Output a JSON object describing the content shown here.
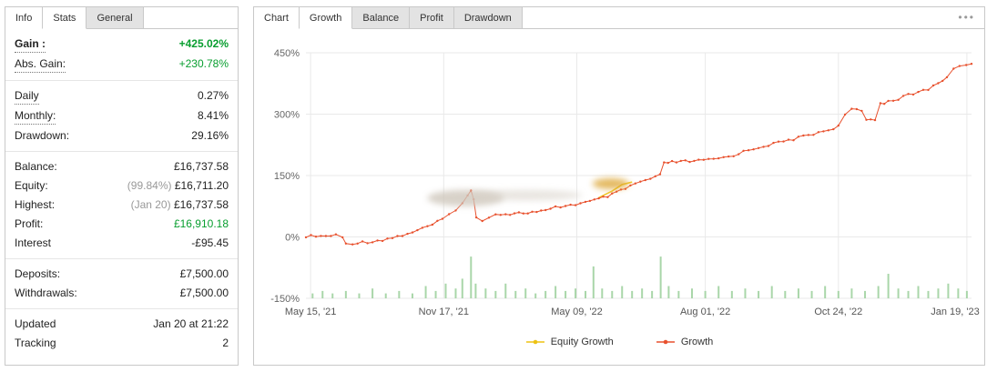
{
  "colors": {
    "positive": "#089e2f",
    "text": "#222222",
    "muted": "#999999",
    "growth_line": "#e8512e",
    "equity_line": "#edc213",
    "activity_bars": "#a9d6a9",
    "grid": "#e9e9e9",
    "border": "#c9c9c9",
    "tab_inactive": "#e3e3e3",
    "axis_label": "#666666"
  },
  "left_panel": {
    "tabs": [
      {
        "label": "Info",
        "highlighted": true
      },
      {
        "label": "Stats",
        "highlighted": true
      },
      {
        "label": "General",
        "highlighted": false
      }
    ],
    "groups": [
      [
        {
          "label": "Gain :",
          "value": "+425.02%",
          "value_color": "positive",
          "bold": true,
          "bold_value": true,
          "dotted": true
        },
        {
          "label": "Abs. Gain:",
          "value": "+230.78%",
          "value_color": "positive",
          "dotted": true
        }
      ],
      [
        {
          "label": "Daily",
          "value": "0.27%",
          "dotted": true
        },
        {
          "label": "Monthly:",
          "value": "8.41%",
          "dotted": true
        },
        {
          "label": "Drawdown:",
          "value": "29.16%"
        }
      ],
      [
        {
          "label": "Balance:",
          "value": "£16,737.58"
        },
        {
          "label": "Equity:",
          "prefix": "(99.84%)",
          "value": "£16,711.20"
        },
        {
          "label": "Highest:",
          "prefix": "(Jan 20)",
          "value": "£16,737.58"
        },
        {
          "label": "Profit:",
          "value": "£16,910.18",
          "value_color": "positive"
        },
        {
          "label": "Interest",
          "value": "-£95.45"
        }
      ],
      [
        {
          "label": "Deposits:",
          "value": "£7,500.00"
        },
        {
          "label": "Withdrawals:",
          "value": "£7,500.00"
        }
      ],
      [
        {
          "label": "Updated",
          "value": "Jan 20 at 21:22"
        },
        {
          "label": "Tracking",
          "value": "2"
        }
      ]
    ]
  },
  "right_panel": {
    "tabs": [
      {
        "label": "Chart",
        "highlighted": true
      },
      {
        "label": "Growth",
        "highlighted": true
      },
      {
        "label": "Balance",
        "highlighted": false
      },
      {
        "label": "Profit",
        "highlighted": false
      },
      {
        "label": "Drawdown",
        "highlighted": false
      }
    ],
    "menu_icon": "•••"
  },
  "chart_data": {
    "type": "line",
    "title": "",
    "xlabel": "",
    "ylabel": "",
    "grid": true,
    "legend_position": "bottom",
    "ylim": [
      -150,
      450
    ],
    "y_ticks": [
      {
        "value": 450,
        "label": "450%"
      },
      {
        "value": 300,
        "label": "300%"
      },
      {
        "value": 150,
        "label": "150%"
      },
      {
        "value": 0,
        "label": "0%"
      },
      {
        "value": -150,
        "label": "-150%"
      }
    ],
    "x_ticks": [
      {
        "pos": 0.007,
        "label": "May 15, '21"
      },
      {
        "pos": 0.207,
        "label": "Nov 17, '21"
      },
      {
        "pos": 0.407,
        "label": "May 09, '22"
      },
      {
        "pos": 0.6,
        "label": "Aug 01, '22"
      },
      {
        "pos": 0.8,
        "label": "Oct 24, '22"
      },
      {
        "pos": 0.993,
        "label": "Jan 19, '23"
      }
    ],
    "series": [
      {
        "name": "Equity Growth",
        "color": "#edc213",
        "points": [
          [
            44,
            96
          ],
          [
            46,
            112
          ],
          [
            47.5,
            128
          ],
          [
            49,
            134
          ]
        ]
      },
      {
        "name": "Growth",
        "color": "#e8512e",
        "points": [
          [
            0,
            2
          ],
          [
            1.5,
            1
          ],
          [
            3,
            2
          ],
          [
            4.5,
            4
          ],
          [
            5.5,
            -2
          ],
          [
            6,
            -16
          ],
          [
            7,
            -15
          ],
          [
            8.5,
            -13
          ],
          [
            10,
            -11
          ],
          [
            11.5,
            -7
          ],
          [
            13,
            -2
          ],
          [
            14.5,
            4
          ],
          [
            16,
            12
          ],
          [
            17.5,
            20
          ],
          [
            19,
            30
          ],
          [
            20.5,
            42
          ],
          [
            21.5,
            55
          ],
          [
            22.5,
            68
          ],
          [
            23.5,
            84
          ],
          [
            24.3,
            100
          ],
          [
            24.8,
            113
          ],
          [
            25.2,
            90
          ],
          [
            25.6,
            48
          ],
          [
            26.5,
            42
          ],
          [
            27.5,
            50
          ],
          [
            28.5,
            55
          ],
          [
            30,
            56
          ],
          [
            32,
            58
          ],
          [
            34,
            60
          ],
          [
            36,
            63
          ],
          [
            37.5,
            72
          ],
          [
            39,
            76
          ],
          [
            40.5,
            80
          ],
          [
            42,
            84
          ],
          [
            44,
            92
          ],
          [
            46,
            103
          ],
          [
            48,
            118
          ],
          [
            49.5,
            130
          ],
          [
            51,
            138
          ],
          [
            52.5,
            146
          ],
          [
            53.2,
            150
          ],
          [
            53.8,
            180
          ],
          [
            55,
            183
          ],
          [
            57,
            184
          ],
          [
            59,
            186
          ],
          [
            60.5,
            188
          ],
          [
            62,
            192
          ],
          [
            63.5,
            196
          ],
          [
            65,
            204
          ],
          [
            66.5,
            212
          ],
          [
            68,
            219
          ],
          [
            69.5,
            225
          ],
          [
            71,
            230
          ],
          [
            72.5,
            236
          ],
          [
            74,
            242
          ],
          [
            75.5,
            249
          ],
          [
            77,
            255
          ],
          [
            78.5,
            262
          ],
          [
            80,
            270
          ],
          [
            81,
            300
          ],
          [
            82,
            310
          ],
          [
            83.5,
            308
          ],
          [
            84.2,
            286
          ],
          [
            85.5,
            288
          ],
          [
            86.3,
            326
          ],
          [
            87.5,
            331
          ],
          [
            89,
            338
          ],
          [
            90.5,
            346
          ],
          [
            92,
            353
          ],
          [
            93.5,
            362
          ],
          [
            95,
            375
          ],
          [
            96.3,
            392
          ],
          [
            97.3,
            408
          ],
          [
            98.2,
            418
          ],
          [
            99.2,
            422
          ],
          [
            100,
            423
          ]
        ]
      }
    ],
    "activity_bars": {
      "color": "#a9d6a9",
      "height_unit": "percent_of_plot_height",
      "bars": [
        [
          1,
          2
        ],
        [
          2.5,
          3
        ],
        [
          4,
          2
        ],
        [
          6,
          3
        ],
        [
          8,
          2
        ],
        [
          10,
          4
        ],
        [
          12,
          2
        ],
        [
          14,
          3
        ],
        [
          16,
          2
        ],
        [
          18,
          5
        ],
        [
          19.5,
          3
        ],
        [
          21,
          6
        ],
        [
          22.5,
          4
        ],
        [
          23.5,
          8
        ],
        [
          24.8,
          17
        ],
        [
          25.5,
          6
        ],
        [
          27,
          4
        ],
        [
          28.5,
          3
        ],
        [
          30,
          6
        ],
        [
          31.5,
          3
        ],
        [
          33,
          4
        ],
        [
          34.5,
          2
        ],
        [
          36,
          3
        ],
        [
          37.5,
          5
        ],
        [
          39,
          3
        ],
        [
          40.5,
          4
        ],
        [
          42,
          3
        ],
        [
          43.2,
          13
        ],
        [
          44.5,
          4
        ],
        [
          46,
          3
        ],
        [
          47.5,
          5
        ],
        [
          49,
          3
        ],
        [
          50.5,
          4
        ],
        [
          52,
          3
        ],
        [
          53.3,
          17
        ],
        [
          54.5,
          5
        ],
        [
          56,
          3
        ],
        [
          58,
          4
        ],
        [
          60,
          3
        ],
        [
          62,
          5
        ],
        [
          64,
          3
        ],
        [
          66,
          4
        ],
        [
          68,
          3
        ],
        [
          70,
          5
        ],
        [
          72,
          3
        ],
        [
          74,
          4
        ],
        [
          76,
          3
        ],
        [
          78,
          5
        ],
        [
          80,
          3
        ],
        [
          82,
          4
        ],
        [
          84,
          3
        ],
        [
          86,
          5
        ],
        [
          87.5,
          10
        ],
        [
          89,
          4
        ],
        [
          90.5,
          3
        ],
        [
          92,
          5
        ],
        [
          93.5,
          3
        ],
        [
          95,
          4
        ],
        [
          96.5,
          6
        ],
        [
          98,
          4
        ],
        [
          99.3,
          3
        ]
      ]
    },
    "smudges": [
      {
        "x": 24,
        "y": 95,
        "rx": 42,
        "ry": 9,
        "color": "#cfc7bc",
        "opacity": 0.8
      },
      {
        "x": 33,
        "y": 102,
        "rx": 62,
        "ry": 6,
        "color": "#d8d2c9",
        "opacity": 0.55
      },
      {
        "x": 45.8,
        "y": 130,
        "rx": 20,
        "ry": 6,
        "color": "#dba32f",
        "opacity": 0.75
      }
    ]
  }
}
